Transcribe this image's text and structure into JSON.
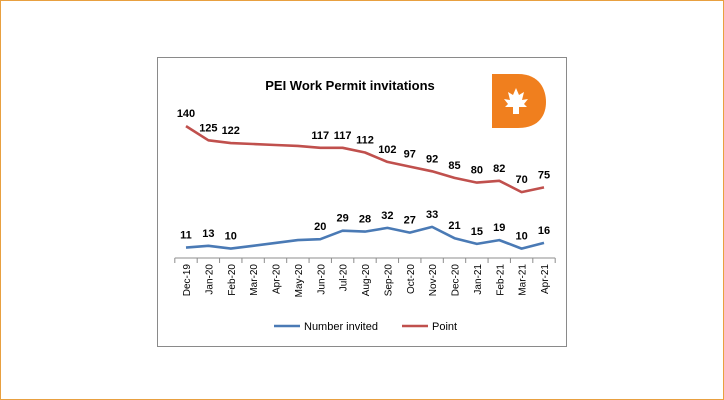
{
  "chart_data": {
    "type": "line",
    "title": "PEI Work Permit invitations",
    "categories": [
      "Dec-19",
      "Jan-20",
      "Feb-20",
      "Mar-20",
      "Apr-20",
      "May-20",
      "Jun-20",
      "Jul-20",
      "Aug-20",
      "Sep-20",
      "Oct-20",
      "Nov-20",
      "Dec-20",
      "Jan-21",
      "Feb-21",
      "Mar-21",
      "Apr-21"
    ],
    "series": [
      {
        "name": "Number invited",
        "color": "#4a7ab5",
        "values": [
          11,
          13,
          10,
          13,
          16,
          19,
          20,
          29,
          28,
          32,
          27,
          33,
          21,
          15,
          19,
          10,
          16
        ],
        "labeled": [
          true,
          true,
          true,
          false,
          false,
          false,
          true,
          true,
          true,
          true,
          true,
          true,
          true,
          true,
          true,
          true,
          true
        ]
      },
      {
        "name": "Point",
        "color": "#c0504d",
        "values": [
          140,
          125,
          122,
          121,
          120,
          119,
          117,
          117,
          112,
          102,
          97,
          92,
          85,
          80,
          82,
          70,
          75
        ],
        "labeled": [
          true,
          true,
          true,
          false,
          false,
          false,
          true,
          true,
          true,
          true,
          true,
          true,
          true,
          true,
          true,
          true,
          true
        ]
      }
    ],
    "ylim": [
      0,
      155
    ],
    "grid": false,
    "legend": "bottom",
    "logo": {
      "letter": "D",
      "color": "#f07f1e",
      "icon": "maple-leaf-icon"
    }
  }
}
